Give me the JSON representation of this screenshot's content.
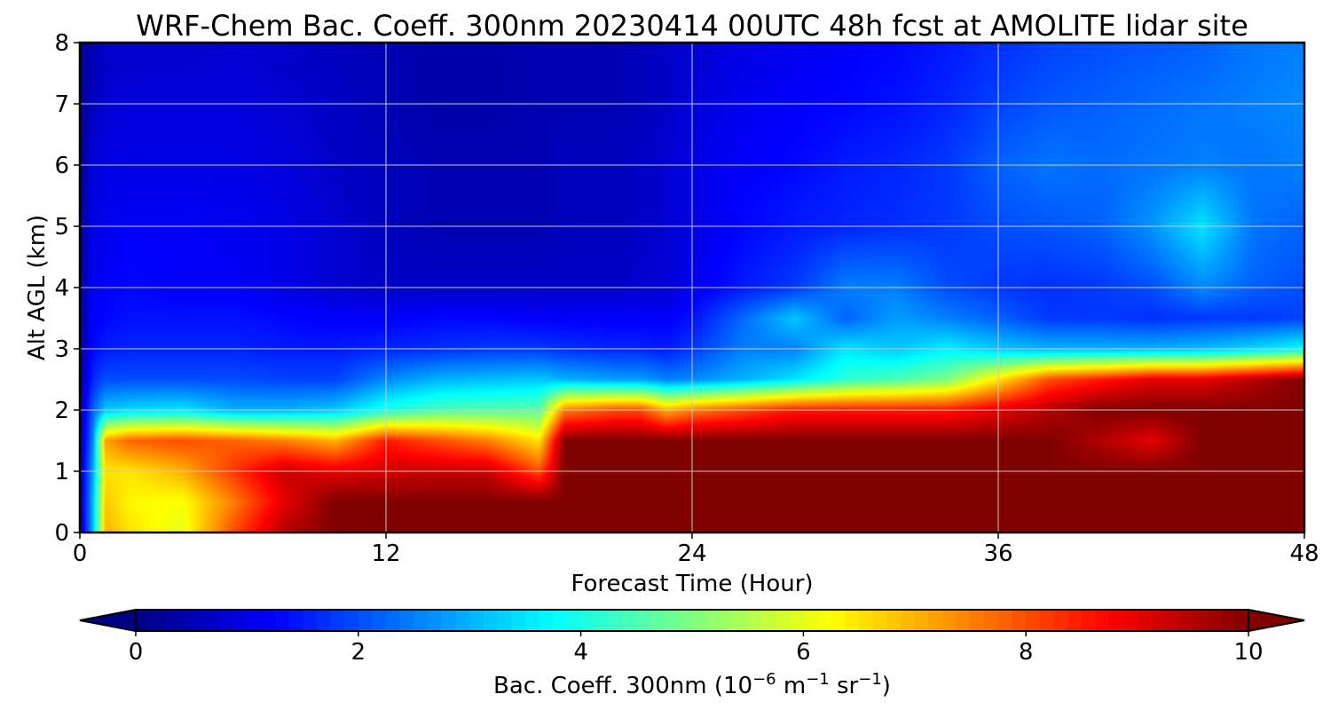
{
  "chart_data": {
    "type": "heatmap",
    "title": "WRF-Chem Bac. Coeff. 300nm  20230414 00UTC 48h fcst at AMOLITE lidar site",
    "xlabel": "Forecast Time (Hour)",
    "ylabel": "Alt AGL (km)",
    "x_ticks": [
      0,
      12,
      24,
      36,
      48
    ],
    "y_ticks": [
      0,
      1,
      2,
      3,
      4,
      5,
      6,
      7,
      8
    ],
    "xlim": [
      0,
      48
    ],
    "ylim": [
      0,
      8
    ],
    "grid": true,
    "x_hours": [
      0,
      0.5,
      1,
      2,
      4,
      6,
      8,
      10,
      12,
      14,
      16,
      18,
      19,
      21,
      22,
      23,
      24,
      26,
      28,
      30,
      32,
      34,
      36,
      38,
      40,
      42,
      44,
      46,
      48
    ],
    "y_km": [
      0,
      0.5,
      1,
      1.5,
      2,
      2.5,
      3,
      3.5,
      4,
      5,
      6,
      7,
      8
    ],
    "values": [
      [
        0.5,
        3.0,
        7.0,
        6.5,
        6.0,
        8.0,
        9.5,
        10,
        10,
        10,
        10,
        10,
        10,
        10,
        10,
        10,
        10,
        10,
        10,
        10,
        10,
        10,
        10,
        10,
        10,
        10,
        10,
        10,
        10
      ],
      [
        0.6,
        3.0,
        6.8,
        6.3,
        6.2,
        7.5,
        9.0,
        10,
        10,
        10,
        10,
        10,
        10,
        10,
        10,
        10,
        10,
        10,
        10,
        10,
        10,
        10,
        10,
        10,
        10,
        10,
        10,
        10,
        10
      ],
      [
        0.6,
        2.8,
        6.5,
        6.5,
        7.0,
        8.2,
        9.3,
        9.0,
        9.2,
        9.3,
        9.3,
        8.0,
        10,
        10,
        10,
        10,
        10,
        10,
        10,
        10,
        10,
        10,
        10,
        10,
        10,
        10,
        10,
        10,
        10
      ],
      [
        0.5,
        2.5,
        7.2,
        7.8,
        8.0,
        7.8,
        7.5,
        7.0,
        8.5,
        8.0,
        7.5,
        6.5,
        10,
        10,
        10,
        10,
        10,
        10,
        10,
        10,
        10,
        10,
        10,
        10,
        9.5,
        9.0,
        10,
        10,
        10
      ],
      [
        0.4,
        2.2,
        3.2,
        3.4,
        3.5,
        3.0,
        3.0,
        3.2,
        4.0,
        4.5,
        4.6,
        4.7,
        7.5,
        8.0,
        8.0,
        7.0,
        7.5,
        8.0,
        8.5,
        8.5,
        8.5,
        8.5,
        9.0,
        9.5,
        10,
        10,
        10,
        10,
        10
      ],
      [
        0.3,
        1.6,
        2.0,
        2.0,
        2.0,
        2.0,
        1.9,
        1.9,
        2.6,
        3.0,
        3.1,
        3.2,
        3.0,
        2.8,
        2.8,
        2.5,
        2.6,
        3.0,
        3.5,
        4.2,
        4.5,
        5.0,
        6.5,
        8.0,
        8.5,
        9.0,
        9.0,
        9.5,
        10
      ],
      [
        0.3,
        1.3,
        1.5,
        1.6,
        1.6,
        1.6,
        1.5,
        1.5,
        1.6,
        1.7,
        1.8,
        1.8,
        1.7,
        1.6,
        1.6,
        1.5,
        1.8,
        2.5,
        2.5,
        3.5,
        3.2,
        3.6,
        3.2,
        3.0,
        3.0,
        3.0,
        3.1,
        3.4,
        3.8
      ],
      [
        0.3,
        1.2,
        1.3,
        1.4,
        1.4,
        1.4,
        1.3,
        1.2,
        1.2,
        1.3,
        1.3,
        1.2,
        1.2,
        1.2,
        1.2,
        1.2,
        1.4,
        2.3,
        3.2,
        2.2,
        2.8,
        2.5,
        2.2,
        1.8,
        1.8,
        1.7,
        1.8,
        1.8,
        1.9
      ],
      [
        0.3,
        1.1,
        1.2,
        1.3,
        1.2,
        1.2,
        1.0,
        0.8,
        0.7,
        0.7,
        0.7,
        0.7,
        0.7,
        0.7,
        0.8,
        0.8,
        1.1,
        1.5,
        1.8,
        2.5,
        2.5,
        2.0,
        1.8,
        1.7,
        1.8,
        2.0,
        2.6,
        2.2,
        2.0
      ],
      [
        0.3,
        1.0,
        1.1,
        1.2,
        1.2,
        1.1,
        1.0,
        0.8,
        0.6,
        0.5,
        0.5,
        0.5,
        0.6,
        0.6,
        0.7,
        0.8,
        1.0,
        1.3,
        1.5,
        1.6,
        1.7,
        1.8,
        2.0,
        2.1,
        2.2,
        2.7,
        3.5,
        2.4,
        2.2
      ],
      [
        0.2,
        0.9,
        1.0,
        1.0,
        1.0,
        1.0,
        0.9,
        0.7,
        0.6,
        0.5,
        0.5,
        0.5,
        0.6,
        0.6,
        0.7,
        0.8,
        1.0,
        1.2,
        1.3,
        1.5,
        1.6,
        1.8,
        2.2,
        2.4,
        2.3,
        2.4,
        2.5,
        2.4,
        2.5
      ],
      [
        0.2,
        0.6,
        0.8,
        0.9,
        0.9,
        0.9,
        0.8,
        0.7,
        0.5,
        0.4,
        0.4,
        0.5,
        0.5,
        0.5,
        0.6,
        0.7,
        0.9,
        1.1,
        1.2,
        1.3,
        1.4,
        1.6,
        1.9,
        2.1,
        2.2,
        2.3,
        2.4,
        2.5,
        2.6
      ],
      [
        0.2,
        0.5,
        0.7,
        0.7,
        0.7,
        0.8,
        0.7,
        0.6,
        0.5,
        0.4,
        0.4,
        0.5,
        0.5,
        0.5,
        0.6,
        0.7,
        0.8,
        1.0,
        1.1,
        1.2,
        1.3,
        1.5,
        1.7,
        1.9,
        2.0,
        2.1,
        2.2,
        2.4,
        2.5
      ]
    ],
    "colorbar": {
      "label_main": "Bac. Coeff. 300nm  (10",
      "exp1": "−6",
      "unit_mid": " m",
      "exp2": "−1",
      "unit_sr": " sr",
      "exp3": "−1",
      "label_end": ")",
      "ticks": [
        0,
        2,
        4,
        6,
        8,
        10
      ],
      "vmin": 0,
      "vmax": 10,
      "extend": "both",
      "colormap": "jet"
    }
  }
}
